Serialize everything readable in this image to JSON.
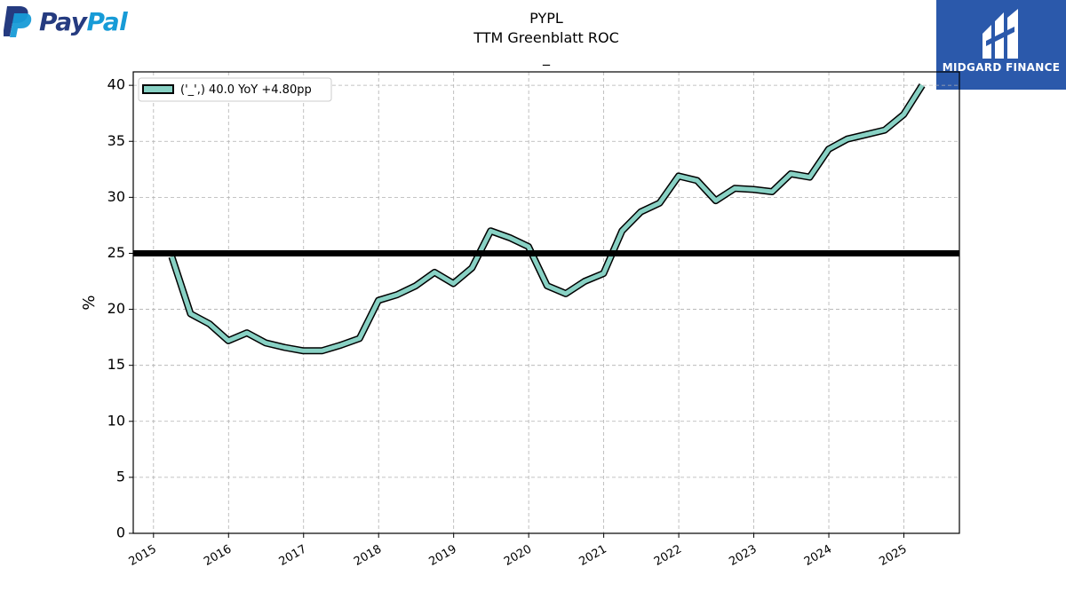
{
  "brand": {
    "left_logo_text_dark": "Pay",
    "left_logo_text_light": "Pal",
    "left_logo_dark_color": "#253b80",
    "left_logo_light_color": "#179bd7",
    "right_logo_text": "MIDGARD FINANCE",
    "right_logo_bg": "#2b59ab"
  },
  "chart_data": {
    "type": "line",
    "title_lines": [
      "PYPL",
      "TTM Greenblatt ROC",
      "_"
    ],
    "ylabel": "%",
    "xlabel": "",
    "ylim": [
      0,
      41.2
    ],
    "xlim": [
      2014.73,
      2025.74
    ],
    "yticks": [
      0,
      5,
      10,
      15,
      20,
      25,
      30,
      35,
      40
    ],
    "xticks": [
      2015,
      2016,
      2017,
      2018,
      2019,
      2020,
      2021,
      2022,
      2023,
      2024,
      2025
    ],
    "grid": true,
    "legend_position": "upper-left",
    "hline": {
      "y": 25.0,
      "color": "#000000"
    },
    "line_color": "#88d1c4",
    "line_edge_color": "#000000",
    "series": [
      {
        "name": "('_',) 40.0 YoY +4.80pp",
        "x": [
          "2015-03-31",
          "2015-06-30",
          "2015-09-30",
          "2015-12-31",
          "2016-03-31",
          "2016-06-30",
          "2016-09-30",
          "2016-12-31",
          "2017-03-31",
          "2017-06-30",
          "2017-09-30",
          "2017-12-31",
          "2018-03-31",
          "2018-06-30",
          "2018-09-30",
          "2018-12-31",
          "2019-03-31",
          "2019-06-30",
          "2019-09-30",
          "2019-12-31",
          "2020-03-31",
          "2020-06-30",
          "2020-09-30",
          "2020-12-31",
          "2021-03-31",
          "2021-06-30",
          "2021-09-30",
          "2021-12-31",
          "2022-03-31",
          "2022-06-30",
          "2022-09-30",
          "2022-12-31",
          "2023-03-31",
          "2023-06-30",
          "2023-09-30",
          "2023-12-31",
          "2024-03-31",
          "2024-06-30",
          "2024-09-30",
          "2024-12-31",
          "2025-03-31"
        ],
        "values": [
          24.7,
          19.6,
          18.7,
          17.2,
          17.9,
          17.0,
          16.6,
          16.3,
          16.3,
          16.8,
          17.4,
          20.8,
          21.3,
          22.1,
          23.3,
          22.3,
          23.7,
          27.0,
          26.4,
          25.6,
          22.1,
          21.4,
          22.5,
          23.2,
          27.0,
          28.7,
          29.5,
          31.9,
          31.5,
          29.7,
          30.8,
          30.7,
          30.5,
          32.1,
          31.8,
          34.3,
          35.2,
          35.6,
          36.0,
          37.4,
          40.0
        ]
      }
    ]
  }
}
